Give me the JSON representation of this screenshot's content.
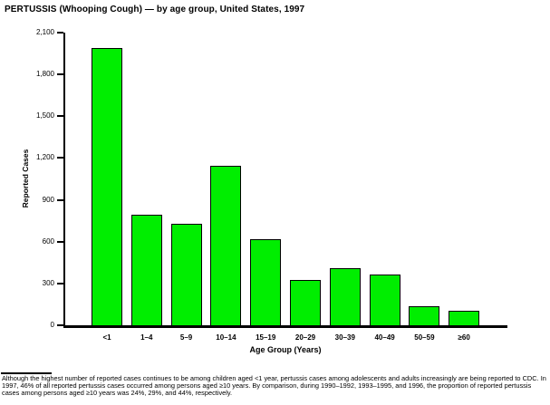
{
  "title": "PERTUSSIS (Whooping Cough) — by age group, United States, 1997",
  "chart_data": {
    "type": "bar",
    "title": "PERTUSSIS (Whooping Cough) — by age group, United States, 1997",
    "categories": [
      "<1",
      "1–4",
      "5–9",
      "10–14",
      "15–19",
      "20–29",
      "30–39",
      "40–49",
      "50–59",
      "≥60"
    ],
    "values": [
      1980,
      785,
      720,
      1140,
      610,
      320,
      405,
      355,
      130,
      100
    ],
    "xlabel": "Age Group (Years)",
    "ylabel": "Reported Cases",
    "ylim": [
      0,
      2100
    ],
    "ytick_step": 300,
    "yticks": [
      0,
      300,
      600,
      900,
      1200,
      1500,
      1800,
      2100
    ],
    "ytick_labels": [
      "0",
      "300",
      "600",
      "900",
      "1,200",
      "1,500",
      "1,800",
      "2,100"
    ],
    "bar_color": "#00ee00",
    "bar_border_color": "#000000",
    "axis_color": "#000000",
    "grid": false,
    "legend_position": "none"
  },
  "footnote": {
    "text": "Although the highest number of reported cases continues to be among children aged <1 year, pertussis cases among adolescents and adults increasingly are being reported to CDC. In 1997, 46% of all reported pertussis cases occurred among persons aged ≥10 years. By comparison, during 1990–1992, 1993–1995, and 1996, the proportion of reported pertussis cases among persons aged ≥10 years was 24%, 29%, and 44%, respectively."
  }
}
